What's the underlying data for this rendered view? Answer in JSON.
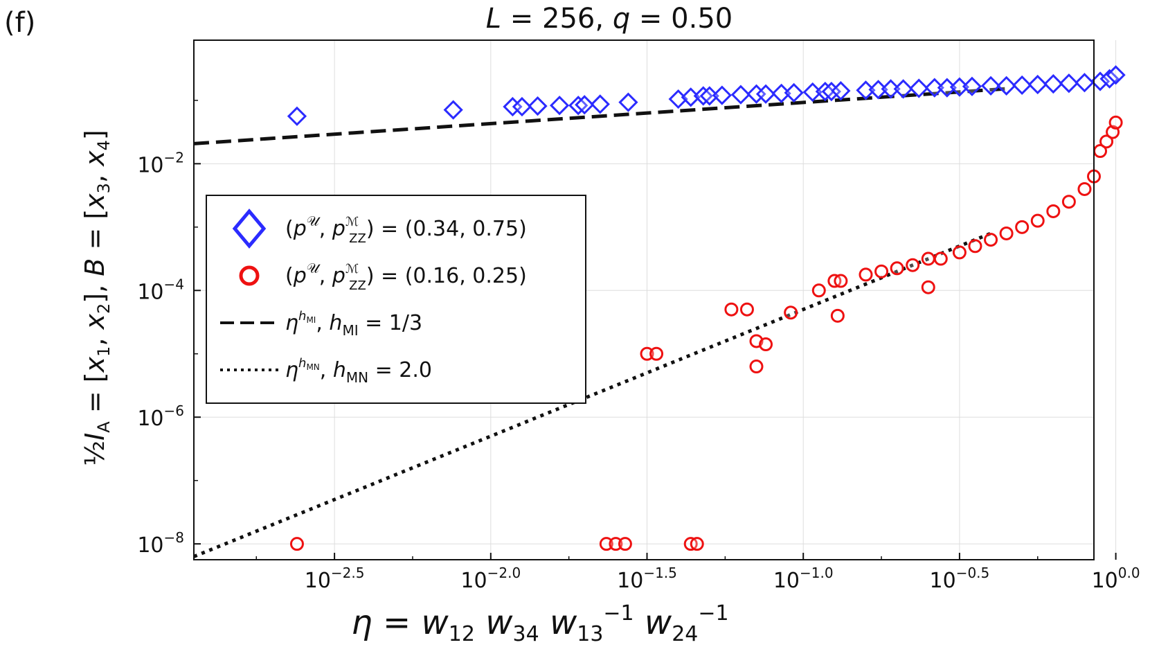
{
  "panel_label": "(f)",
  "chart_data": {
    "type": "scatter",
    "title": "L = 256, q = 0.50",
    "xlabel": "η = w12 w34 w13^-1 w24^-1",
    "ylabel": "½ I_A = [x1, x2], B = [x3, x4]",
    "xscale": "log10",
    "yscale": "log10",
    "xlim_log10": [
      -2.95,
      -0.07
    ],
    "ylim_log10": [
      -8.25,
      -0.05
    ],
    "x_ticks": [
      {
        "log": -2.5,
        "label": "10",
        "exp": "−2.5"
      },
      {
        "log": -2.0,
        "label": "10",
        "exp": "−2.0"
      },
      {
        "log": -1.5,
        "label": "10",
        "exp": "−1.5"
      },
      {
        "log": -1.0,
        "label": "10",
        "exp": "−1.0"
      },
      {
        "log": -0.5,
        "label": "10",
        "exp": "−0.5"
      },
      {
        "log": 0.0,
        "label": "10",
        "exp": "0.0"
      }
    ],
    "y_ticks": [
      {
        "log": -2,
        "label": "10",
        "exp": "−2"
      },
      {
        "log": -4,
        "label": "10",
        "exp": "−4"
      },
      {
        "log": -6,
        "label": "10",
        "exp": "−6"
      },
      {
        "log": -8,
        "label": "10",
        "exp": "−8"
      }
    ],
    "grid": true,
    "legend_position": "center-left",
    "series": [
      {
        "name": "(p^U, p^M_ZZ) = (0.34, 0.75)",
        "marker": "diamond",
        "color": "#2b2bff",
        "points_log10": [
          [
            -2.62,
            -1.25
          ],
          [
            -2.12,
            -1.15
          ],
          [
            -1.93,
            -1.1
          ],
          [
            -1.9,
            -1.1
          ],
          [
            -1.85,
            -1.09
          ],
          [
            -1.78,
            -1.08
          ],
          [
            -1.72,
            -1.08
          ],
          [
            -1.7,
            -1.07
          ],
          [
            -1.65,
            -1.06
          ],
          [
            -1.56,
            -1.03
          ],
          [
            -1.4,
            -0.98
          ],
          [
            -1.36,
            -0.95
          ],
          [
            -1.32,
            -0.93
          ],
          [
            -1.3,
            -0.93
          ],
          [
            -1.26,
            -0.92
          ],
          [
            -1.2,
            -0.91
          ],
          [
            -1.15,
            -0.9
          ],
          [
            -1.12,
            -0.9
          ],
          [
            -1.07,
            -0.89
          ],
          [
            -1.03,
            -0.88
          ],
          [
            -0.97,
            -0.87
          ],
          [
            -0.93,
            -0.86
          ],
          [
            -0.91,
            -0.86
          ],
          [
            -0.88,
            -0.85
          ],
          [
            -0.8,
            -0.84
          ],
          [
            -0.76,
            -0.83
          ],
          [
            -0.72,
            -0.82
          ],
          [
            -0.68,
            -0.82
          ],
          [
            -0.63,
            -0.81
          ],
          [
            -0.58,
            -0.8
          ],
          [
            -0.54,
            -0.8
          ],
          [
            -0.5,
            -0.79
          ],
          [
            -0.46,
            -0.78
          ],
          [
            -0.4,
            -0.77
          ],
          [
            -0.35,
            -0.77
          ],
          [
            -0.3,
            -0.76
          ],
          [
            -0.25,
            -0.75
          ],
          [
            -0.2,
            -0.74
          ],
          [
            -0.15,
            -0.73
          ],
          [
            -0.1,
            -0.72
          ],
          [
            -0.05,
            -0.7
          ],
          [
            -0.02,
            -0.66
          ],
          [
            0.0,
            -0.6
          ]
        ]
      },
      {
        "name": "(p^U, p^M_ZZ) = (0.16, 0.25)",
        "marker": "circle",
        "color": "#ee1111",
        "points_log10": [
          [
            -2.62,
            -8.0
          ],
          [
            -1.63,
            -8.0
          ],
          [
            -1.6,
            -8.0
          ],
          [
            -1.57,
            -8.0
          ],
          [
            -1.36,
            -8.0
          ],
          [
            -1.34,
            -8.0
          ],
          [
            -1.5,
            -5.0
          ],
          [
            -1.47,
            -5.0
          ],
          [
            -1.23,
            -4.3
          ],
          [
            -1.18,
            -4.3
          ],
          [
            -1.15,
            -4.8
          ],
          [
            -1.12,
            -4.85
          ],
          [
            -1.15,
            -5.2
          ],
          [
            -1.04,
            -4.35
          ],
          [
            -0.95,
            -4.0
          ],
          [
            -0.9,
            -3.85
          ],
          [
            -0.88,
            -3.85
          ],
          [
            -0.89,
            -4.4
          ],
          [
            -0.8,
            -3.75
          ],
          [
            -0.75,
            -3.7
          ],
          [
            -0.7,
            -3.65
          ],
          [
            -0.65,
            -3.6
          ],
          [
            -0.6,
            -3.5
          ],
          [
            -0.6,
            -3.95
          ],
          [
            -0.56,
            -3.5
          ],
          [
            -0.5,
            -3.4
          ],
          [
            -0.45,
            -3.3
          ],
          [
            -0.4,
            -3.2
          ],
          [
            -0.35,
            -3.1
          ],
          [
            -0.3,
            -3.0
          ],
          [
            -0.25,
            -2.9
          ],
          [
            -0.2,
            -2.75
          ],
          [
            -0.15,
            -2.6
          ],
          [
            -0.1,
            -2.4
          ],
          [
            -0.07,
            -2.2
          ],
          [
            -0.05,
            -1.8
          ],
          [
            -0.03,
            -1.65
          ],
          [
            -0.01,
            -1.5
          ],
          [
            0.0,
            -1.35
          ]
        ]
      }
    ],
    "fits": [
      {
        "name": "η^hMI, hMI = 1/3",
        "style": "dashed",
        "color": "#111111",
        "slope": 0.3333,
        "x_log10": [
          -2.95,
          -0.35
        ],
        "y_at_x0": -0.7
      },
      {
        "name": "η^hMN, hMN = 2.0",
        "style": "dotted",
        "color": "#111111",
        "slope": 2.0,
        "x_log10": [
          -2.95,
          -0.4
        ],
        "y_at_x0": -2.3
      }
    ],
    "legend": [
      {
        "label": "(p^U, p^M_ZZ) = (0.34, 0.75)"
      },
      {
        "label": "(p^U, p^M_ZZ) = (0.16, 0.25)"
      },
      {
        "label": "η^hMI, hMI = 1/3"
      },
      {
        "label": "η^hMN, hMN = 2.0"
      }
    ]
  }
}
